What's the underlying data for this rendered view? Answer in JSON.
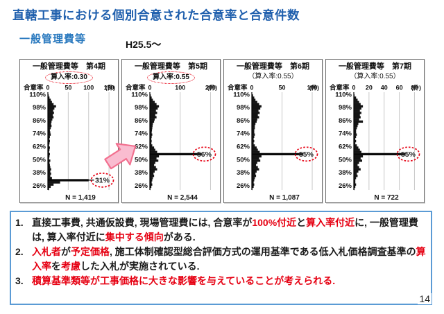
{
  "slide": {
    "title": "直轄工事における個別合意された合意率と合意件数",
    "section_label": "一般管理費等",
    "period_label": "H25.5～",
    "page_number": "14",
    "colors": {
      "title_blue": "#1F5FAD",
      "section_blue": "#2878BE",
      "notes_border_blue": "#5B9BD5",
      "highlight_red": "#E60012",
      "bar_black": "#141414",
      "arrow_fill": "#F9BCD0",
      "arrow_stroke": "#F2708F"
    }
  },
  "chart_data": [
    {
      "type": "bar",
      "orientation": "horizontal-histogram",
      "title": "一般管理費等　第4期",
      "subtitle": "算入率:0.30",
      "subtitle_oval": true,
      "axis_label": "合意率",
      "unit_label": "(件)",
      "x_ticks": [
        0,
        50,
        100,
        150
      ],
      "x_max": 160,
      "y_tick_labels": [
        "110%",
        "98%",
        "86%",
        "74%",
        "62%",
        "50%",
        "38%",
        "26%"
      ],
      "y_tick_values": [
        110,
        98,
        86,
        74,
        62,
        50,
        38,
        26
      ],
      "n_label": "N = 1,419",
      "highlight": {
        "bin_top": 32,
        "label": "31%"
      },
      "bin_top_start": 110,
      "bin_step": 2,
      "hist": [
        2,
        4,
        7,
        10,
        14,
        20,
        16,
        13,
        15,
        12,
        14,
        11,
        9,
        8,
        9,
        7,
        5,
        6,
        7,
        5,
        4,
        5,
        4,
        3,
        5,
        4,
        3,
        5,
        4,
        3,
        6,
        4,
        5,
        6,
        8,
        6,
        8,
        6,
        10,
        100,
        30,
        14,
        7,
        3
      ]
    },
    {
      "type": "bar",
      "orientation": "horizontal-histogram",
      "title": "一般管理費等　第5期",
      "subtitle": "算入率:0.55",
      "subtitle_oval": true,
      "axis_label": "合意率",
      "unit_label": "(件)",
      "x_ticks": [
        0,
        100,
        200
      ],
      "x_max": 215,
      "y_tick_labels": [
        "110%",
        "98%",
        "86%",
        "74%",
        "62%",
        "50%",
        "38%",
        "26%"
      ],
      "y_tick_values": [
        110,
        98,
        86,
        74,
        62,
        50,
        38,
        26
      ],
      "n_label": "N = 2,544",
      "highlight": {
        "bin_top": 56,
        "label": "56%"
      },
      "bin_top_start": 110,
      "bin_step": 2,
      "hist": [
        3,
        6,
        10,
        16,
        22,
        30,
        26,
        20,
        24,
        18,
        22,
        16,
        14,
        10,
        9,
        8,
        7,
        6,
        8,
        6,
        5,
        6,
        5,
        8,
        14,
        18,
        24,
        170,
        30,
        22,
        28,
        18,
        14,
        20,
        24,
        16,
        12,
        14,
        10,
        8,
        6,
        8,
        5,
        2
      ]
    },
    {
      "type": "bar",
      "orientation": "horizontal-histogram",
      "title": "一般管理費等　第6期",
      "subtitle": "（算入率:0.55）",
      "subtitle_oval": false,
      "axis_label": "合意率",
      "unit_label": "(件)",
      "x_ticks": [
        0,
        50,
        100
      ],
      "x_max": 108,
      "y_tick_labels": [
        "110%",
        "98%",
        "86%",
        "74%",
        "62%",
        "50%",
        "38%",
        "26%"
      ],
      "y_tick_values": [
        110,
        98,
        86,
        74,
        62,
        50,
        38,
        26
      ],
      "n_label": "N = 1,087",
      "highlight": {
        "bin_top": 56,
        "label": "55%"
      },
      "bin_top_start": 110,
      "bin_step": 2,
      "hist": [
        2,
        4,
        6,
        9,
        12,
        16,
        14,
        11,
        13,
        10,
        12,
        9,
        8,
        6,
        5,
        5,
        4,
        4,
        5,
        4,
        3,
        4,
        3,
        5,
        8,
        10,
        13,
        85,
        16,
        12,
        14,
        9,
        7,
        10,
        12,
        8,
        6,
        7,
        5,
        4,
        3,
        4,
        3,
        1
      ]
    },
    {
      "type": "bar",
      "orientation": "horizontal-histogram",
      "title": "一般管理費等　第7期",
      "subtitle": "（算入率:0.55）",
      "subtitle_oval": false,
      "axis_label": "合意率",
      "unit_label": "(件)",
      "x_ticks": [
        0,
        20,
        40,
        60,
        80
      ],
      "x_max": 86,
      "y_tick_labels": [
        "110%",
        "98%",
        "86%",
        "74%",
        "62%",
        "50%",
        "38%",
        "26%"
      ],
      "y_tick_values": [
        110,
        98,
        86,
        74,
        62,
        50,
        38,
        26
      ],
      "n_label": "N = 722",
      "highlight": {
        "bin_top": 56,
        "label": "55%"
      },
      "bin_top_start": 110,
      "bin_step": 2,
      "hist": [
        1,
        3,
        5,
        7,
        9,
        12,
        10,
        8,
        10,
        8,
        9,
        7,
        12,
        6,
        5,
        4,
        3,
        3,
        4,
        3,
        2,
        3,
        2,
        4,
        6,
        8,
        10,
        68,
        12,
        9,
        11,
        7,
        5,
        7,
        9,
        6,
        4,
        5,
        3,
        2,
        2,
        3,
        2,
        1
      ]
    }
  ],
  "notes": {
    "items": [
      {
        "marker": "1.",
        "segments": [
          {
            "t": "直接工事費, 共通仮設費, 現場管理費には, 合意率が",
            "c": "k"
          },
          {
            "t": "100%付近",
            "c": "r"
          },
          {
            "t": "と",
            "c": "k"
          },
          {
            "t": "算入率付近",
            "c": "r"
          },
          {
            "t": "に, 一般管理費は, 算入率付近に",
            "c": "k"
          },
          {
            "t": "集中する傾向",
            "c": "r"
          },
          {
            "t": "がある.",
            "c": "k"
          }
        ]
      },
      {
        "marker": "2.",
        "segments": [
          {
            "t": "入札者",
            "c": "r"
          },
          {
            "t": "が",
            "c": "k"
          },
          {
            "t": "予定価格",
            "c": "r"
          },
          {
            "t": ", 施工体制確認型総合評価方式の運用基準である低入札価格調査基準の",
            "c": "k"
          },
          {
            "t": "算入率",
            "c": "r"
          },
          {
            "t": "を",
            "c": "k"
          },
          {
            "t": "考慮",
            "c": "r"
          },
          {
            "t": "した入札が実施されている.",
            "c": "k"
          }
        ]
      },
      {
        "marker": "3.",
        "segments": [
          {
            "t": "積算基準類等が工事価格に大きな影響を与えていることが考えられる.",
            "c": "r"
          }
        ]
      }
    ]
  }
}
